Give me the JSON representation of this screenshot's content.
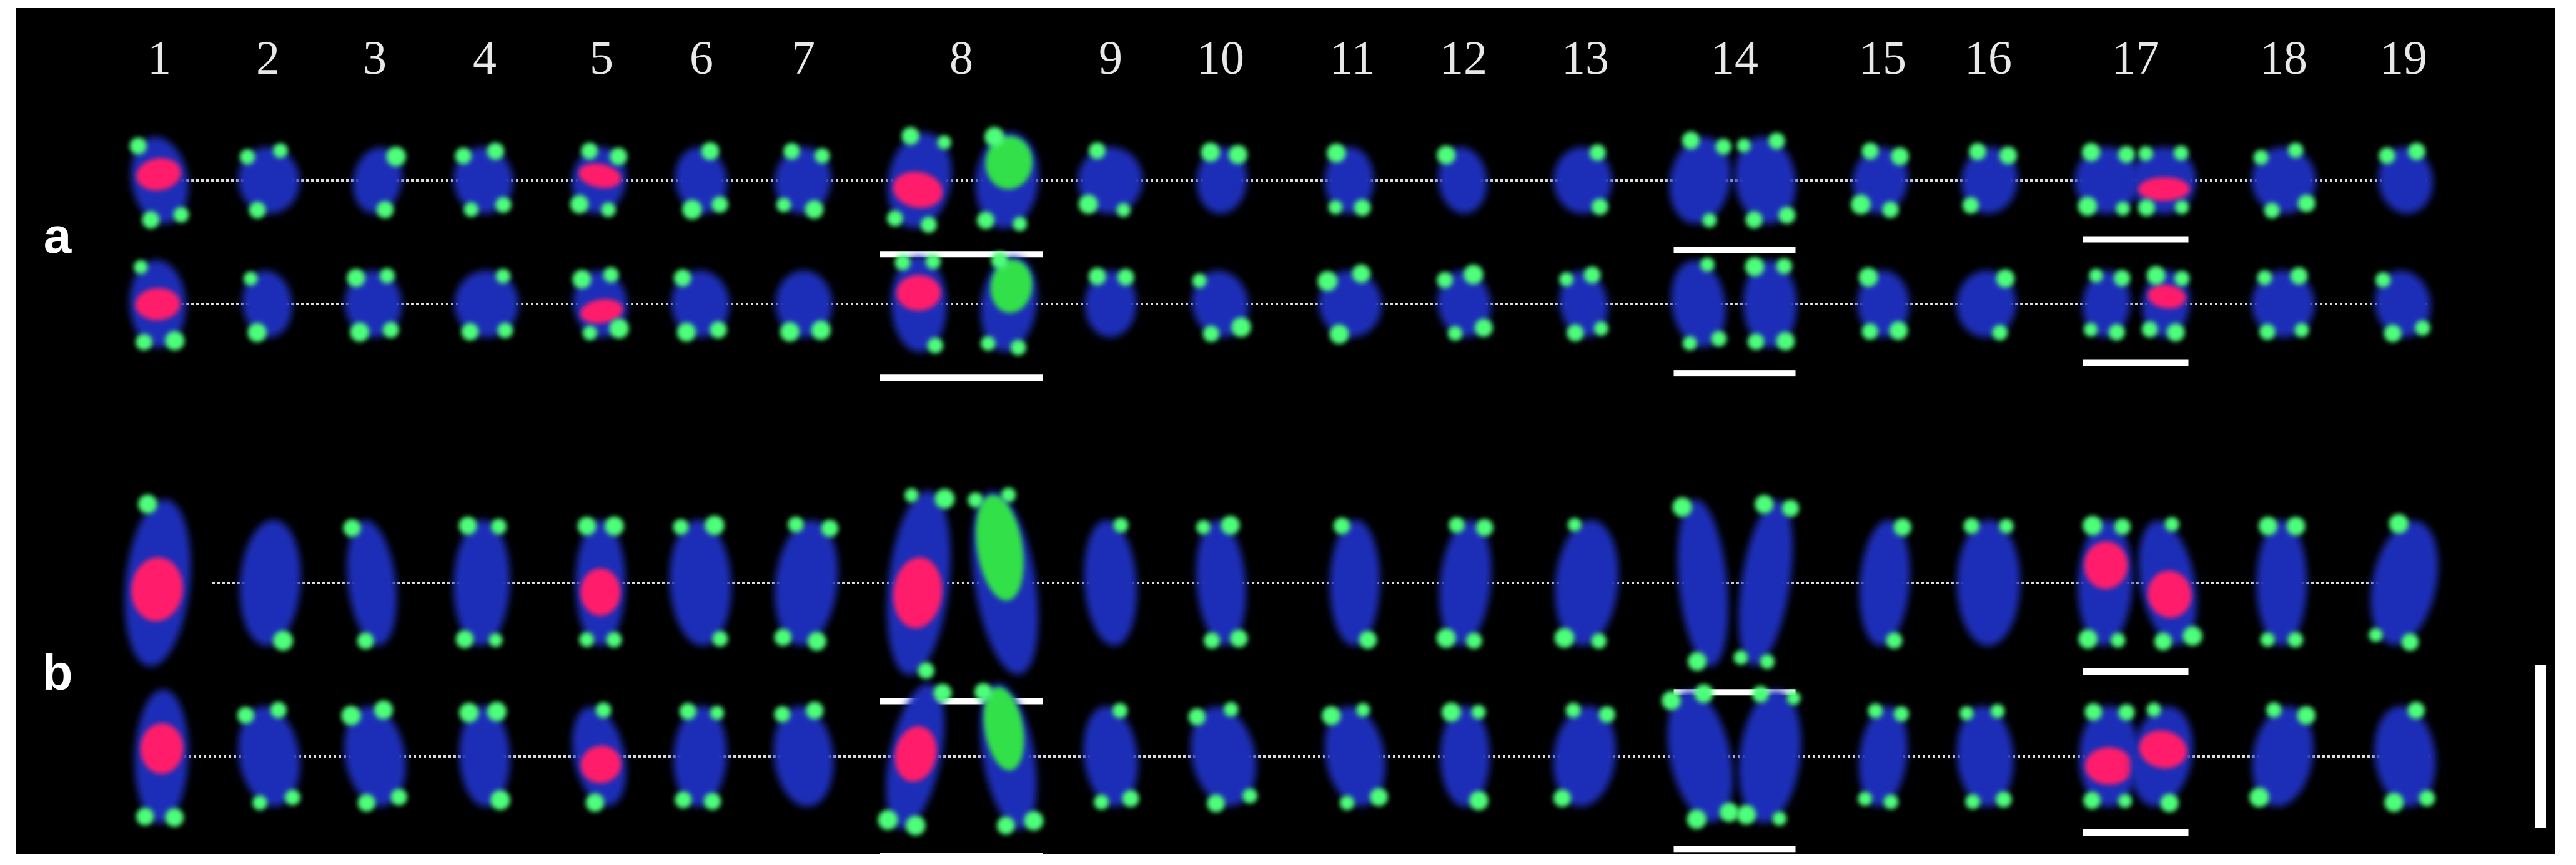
{
  "column_labels": [
    "1",
    "2",
    "3",
    "4",
    "5",
    "6",
    "7",
    "8",
    "9",
    "10",
    "11",
    "12",
    "13",
    "14",
    "15",
    "16",
    "17",
    "18",
    "19"
  ],
  "row_labels": [
    "a",
    "b"
  ]
}
